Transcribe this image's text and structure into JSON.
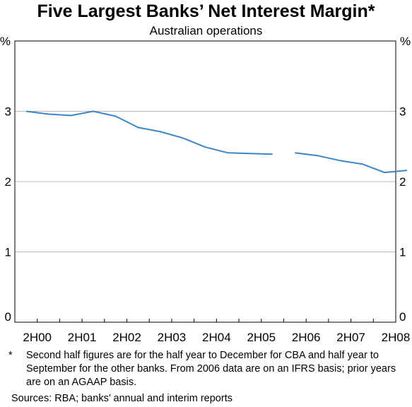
{
  "chart_data": {
    "type": "line",
    "title": "Five Largest Banks’ Net Interest Margin*",
    "subtitle": "Australian operations",
    "ylabel_left": "%",
    "ylabel_right": "%",
    "ylim": [
      0,
      3.0
    ],
    "yticks": [
      "0",
      "1",
      "2",
      "3"
    ],
    "xlim": [
      0,
      17
    ],
    "x_ticklabels": [
      "2H00",
      "2H01",
      "2H02",
      "2H03",
      "2H04",
      "2H05",
      "2H06",
      "2H07",
      "2H08"
    ],
    "grid": true,
    "series": [
      {
        "color": "#3b86c8",
        "segments": [
          [
            [
              0.5,
              3.0
            ],
            [
              1.5,
              2.96
            ],
            [
              2.5,
              2.94
            ],
            [
              3.5,
              3.0
            ],
            [
              4.5,
              2.93
            ],
            [
              5.5,
              2.77
            ],
            [
              6.5,
              2.71
            ],
            [
              7.5,
              2.62
            ],
            [
              8.5,
              2.49
            ],
            [
              9.5,
              2.41
            ],
            [
              10.5,
              2.4
            ],
            [
              11.5,
              2.39
            ]
          ],
          [
            [
              12.5,
              2.41
            ],
            [
              13.5,
              2.37
            ],
            [
              14.5,
              2.3
            ],
            [
              15.5,
              2.25
            ],
            [
              16.5,
              2.13
            ],
            [
              17.5,
              2.16
            ]
          ]
        ]
      }
    ]
  },
  "footnote": {
    "marker": "*",
    "text": "Second half figures are for the half year to December for CBA and half year to September for the other banks. From 2006 data are on an IFRS basis; prior years are on an AGAAP basis."
  },
  "sources": "Sources: RBA; banks’ annual and interim reports"
}
